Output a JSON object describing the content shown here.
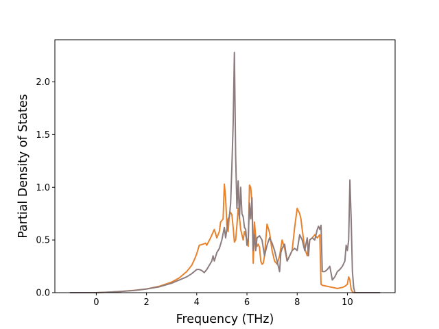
{
  "chart_data": {
    "type": "line",
    "title": "",
    "xlabel": "Frequency (THz)",
    "ylabel": "Partial Density of States",
    "xlim": [
      -1.65,
      11.9
    ],
    "ylim": [
      0.0,
      2.4
    ],
    "xticks": [
      "0",
      "2",
      "4",
      "6",
      "8",
      "10"
    ],
    "xtick_values": [
      0,
      2,
      4,
      6,
      8,
      10
    ],
    "yticks": [
      "0.0",
      "0.5",
      "1.0",
      "1.5",
      "2.0"
    ],
    "ytick_values": [
      0.0,
      0.5,
      1.0,
      1.5,
      2.0
    ],
    "grid": false,
    "legend": "none",
    "series": [
      {
        "color": "#e8822c",
        "x": [
          -1.05,
          0.0,
          0.5,
          1.0,
          1.5,
          2.0,
          2.5,
          3.0,
          3.3,
          3.6,
          3.8,
          3.9,
          4.0,
          4.1,
          4.25,
          4.35,
          4.4,
          4.55,
          4.7,
          4.8,
          4.9,
          4.95,
          5.05,
          5.1,
          5.15,
          5.2,
          5.25,
          5.3,
          5.35,
          5.4,
          5.45,
          5.5,
          5.55,
          5.6,
          5.65,
          5.7,
          5.75,
          5.8,
          5.85,
          5.9,
          6.0,
          6.05,
          6.1,
          6.15,
          6.2,
          6.25,
          6.3,
          6.35,
          6.4,
          6.45,
          6.5,
          6.55,
          6.6,
          6.65,
          6.7,
          6.75,
          6.8,
          6.9,
          7.0,
          7.1,
          7.2,
          7.3,
          7.4,
          7.5,
          7.6,
          7.7,
          7.8,
          7.9,
          8.0,
          8.1,
          8.15,
          8.2,
          8.3,
          8.4,
          8.5,
          8.6,
          8.7,
          8.8,
          8.9,
          8.95,
          9.0,
          9.2,
          9.4,
          9.6,
          9.8,
          9.9,
          10.0,
          10.05,
          10.1,
          10.15,
          10.2,
          10.25,
          10.3,
          11.3
        ],
        "y": [
          0.0,
          0.0,
          0.005,
          0.012,
          0.022,
          0.035,
          0.06,
          0.1,
          0.14,
          0.2,
          0.26,
          0.31,
          0.37,
          0.45,
          0.46,
          0.47,
          0.45,
          0.52,
          0.6,
          0.52,
          0.58,
          0.67,
          0.7,
          1.03,
          0.9,
          0.64,
          0.58,
          0.74,
          0.76,
          0.74,
          0.62,
          0.48,
          0.5,
          0.64,
          0.8,
          0.72,
          0.6,
          0.55,
          0.5,
          0.58,
          0.5,
          0.44,
          1.02,
          1.0,
          0.85,
          0.28,
          0.67,
          0.52,
          0.44,
          0.46,
          0.43,
          0.3,
          0.27,
          0.28,
          0.35,
          0.5,
          0.65,
          0.57,
          0.4,
          0.3,
          0.27,
          0.35,
          0.5,
          0.42,
          0.3,
          0.35,
          0.4,
          0.62,
          0.8,
          0.75,
          0.7,
          0.6,
          0.42,
          0.35,
          0.5,
          0.52,
          0.55,
          0.52,
          0.55,
          0.08,
          0.07,
          0.06,
          0.05,
          0.04,
          0.05,
          0.06,
          0.08,
          0.15,
          0.12,
          0.03,
          0.01,
          0.0,
          0.0,
          0.0
        ]
      },
      {
        "color": "#8c7c7e",
        "x": [
          -1.05,
          0.0,
          0.5,
          1.0,
          1.5,
          2.0,
          2.5,
          3.0,
          3.3,
          3.6,
          3.8,
          3.9,
          4.0,
          4.1,
          4.2,
          4.3,
          4.4,
          4.5,
          4.6,
          4.65,
          4.7,
          4.8,
          4.9,
          5.0,
          5.1,
          5.15,
          5.2,
          5.25,
          5.3,
          5.35,
          5.4,
          5.45,
          5.5,
          5.55,
          5.6,
          5.65,
          5.7,
          5.75,
          5.8,
          5.85,
          5.9,
          5.95,
          6.0,
          6.05,
          6.1,
          6.15,
          6.2,
          6.25,
          6.3,
          6.35,
          6.4,
          6.5,
          6.6,
          6.7,
          6.8,
          6.9,
          7.0,
          7.1,
          7.2,
          7.3,
          7.35,
          7.4,
          7.5,
          7.6,
          7.7,
          7.8,
          7.9,
          8.0,
          8.1,
          8.2,
          8.3,
          8.4,
          8.45,
          8.5,
          8.6,
          8.7,
          8.8,
          8.85,
          8.9,
          8.95,
          9.0,
          9.1,
          9.2,
          9.3,
          9.4,
          9.5,
          9.6,
          9.7,
          9.8,
          9.9,
          9.95,
          10.0,
          10.05,
          10.1,
          10.15,
          10.2,
          10.25,
          10.3,
          11.3
        ],
        "y": [
          0.0,
          0.0,
          0.005,
          0.012,
          0.02,
          0.035,
          0.055,
          0.09,
          0.12,
          0.15,
          0.18,
          0.2,
          0.22,
          0.22,
          0.21,
          0.19,
          0.22,
          0.26,
          0.3,
          0.35,
          0.3,
          0.38,
          0.42,
          0.5,
          0.62,
          0.52,
          0.6,
          0.7,
          0.72,
          0.85,
          1.2,
          1.6,
          2.28,
          1.3,
          0.8,
          1.06,
          0.7,
          1.0,
          0.75,
          0.72,
          0.62,
          0.6,
          0.45,
          0.5,
          0.85,
          0.7,
          0.9,
          0.4,
          0.55,
          0.4,
          0.52,
          0.54,
          0.5,
          0.35,
          0.45,
          0.52,
          0.47,
          0.4,
          0.3,
          0.2,
          0.38,
          0.42,
          0.46,
          0.3,
          0.35,
          0.4,
          0.42,
          0.4,
          0.55,
          0.5,
          0.4,
          0.52,
          0.35,
          0.5,
          0.52,
          0.5,
          0.6,
          0.63,
          0.6,
          0.64,
          0.2,
          0.2,
          0.22,
          0.25,
          0.12,
          0.15,
          0.2,
          0.22,
          0.25,
          0.3,
          0.45,
          0.4,
          0.5,
          1.07,
          0.7,
          0.2,
          0.05,
          0.0,
          0.0
        ]
      }
    ]
  }
}
